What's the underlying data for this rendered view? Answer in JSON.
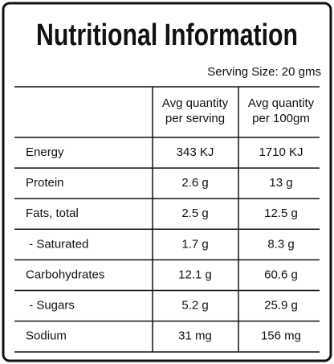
{
  "header": {
    "title": "Nutritional Information",
    "serving_size": "Serving Size: 20 gms"
  },
  "table": {
    "columns": [
      [
        "Avg quantity",
        "per serving"
      ],
      [
        "Avg quantity",
        "per 100gm"
      ]
    ],
    "rows": [
      [
        "Energy",
        "343 KJ",
        "1710 KJ"
      ],
      [
        "Protein",
        "2.6 g",
        "13 g"
      ],
      [
        "Fats, total",
        "2.5 g",
        "12.5 g"
      ],
      [
        " - Saturated",
        "1.7 g",
        "8.3 g"
      ],
      [
        "Carbohydrates",
        "12.1 g",
        "60.6 g"
      ],
      [
        " - Sugars",
        "5.2 g",
        "25.9 g"
      ],
      [
        "Sodium",
        "31 mg",
        "156 mg"
      ]
    ]
  }
}
